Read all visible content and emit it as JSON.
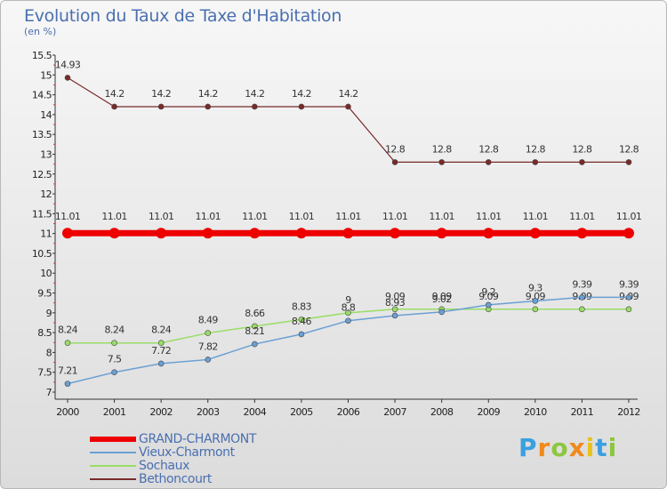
{
  "chart_data": {
    "type": "line",
    "title": "Evolution du Taux de Taxe d'Habitation",
    "subtitle": "(en %)",
    "x": [
      "2000",
      "2001",
      "2002",
      "2003",
      "2004",
      "2005",
      "2006",
      "2007",
      "2008",
      "2009",
      "2010",
      "2011",
      "2012"
    ],
    "ylim": [
      7,
      15.5
    ],
    "yticks": [
      "7",
      "7.5",
      "8",
      "8.5",
      "9",
      "9.5",
      "10",
      "10.5",
      "11",
      "11.5",
      "12",
      "12.5",
      "13",
      "13.5",
      "14",
      "14.5",
      "15",
      "15.5"
    ],
    "series": [
      {
        "name": "GRAND-CHARMONT",
        "color": "#ee0000",
        "values": [
          11.01,
          11.01,
          11.01,
          11.01,
          11.01,
          11.01,
          11.01,
          11.01,
          11.01,
          11.01,
          11.01,
          11.01,
          11.01
        ],
        "labels": [
          "11.01",
          "11.01",
          "11.01",
          "11.01",
          "11.01",
          "11.01",
          "11.01",
          "11.01",
          "11.01",
          "11.01",
          "11.01",
          "11.01",
          "11.01"
        ]
      },
      {
        "name": "Vieux-Charmont",
        "color": "#6a9fd4",
        "values": [
          7.21,
          7.5,
          7.72,
          7.82,
          8.21,
          8.46,
          8.8,
          8.93,
          9.02,
          9.2,
          9.3,
          9.39,
          9.39
        ],
        "labels": [
          "7.21",
          "7.5",
          "7.72",
          "7.82",
          "8.21",
          "8.46",
          "8.8",
          "8.93",
          "9.02",
          "9.2",
          "9.3",
          "9.39",
          "9.39"
        ]
      },
      {
        "name": "Sochaux",
        "color": "#99dd66",
        "values": [
          8.24,
          8.24,
          8.24,
          8.49,
          8.66,
          8.83,
          9.0,
          9.09,
          9.09,
          9.09,
          9.09,
          9.09,
          9.09
        ],
        "labels": [
          "8.24",
          "8.24",
          "8.24",
          "8.49",
          "8.66",
          "8.83",
          "9",
          "9.09",
          "9.09",
          "9.09",
          "9.09",
          "9.09",
          "9.09"
        ]
      },
      {
        "name": "Bethoncourt",
        "color": "#7a2a2a",
        "values": [
          14.93,
          14.2,
          14.2,
          14.2,
          14.2,
          14.2,
          14.2,
          12.8,
          12.8,
          12.8,
          12.8,
          12.8,
          12.8
        ],
        "labels": [
          "14.93",
          "14.2",
          "14.2",
          "14.2",
          "14.2",
          "14.2",
          "14.2",
          "12.8",
          "12.8",
          "12.8",
          "12.8",
          "12.8",
          "12.8"
        ]
      }
    ],
    "grid": false,
    "legend_position": "bottom-left"
  },
  "logo": {
    "letters": [
      "P",
      "r",
      "o",
      "x",
      "i",
      "t",
      "i"
    ],
    "colors": [
      "#3aa0e0",
      "#f08a1c",
      "#8cc63f",
      "#f08a1c",
      "#e8c21a",
      "#3aa0e0",
      "#8cc63f"
    ]
  }
}
